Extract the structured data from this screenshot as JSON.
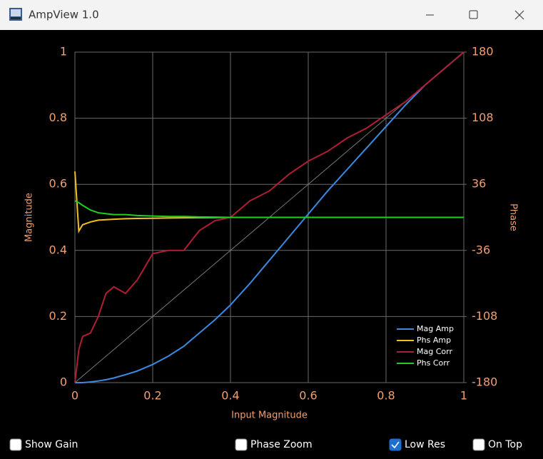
{
  "window": {
    "title": "AmpView 1.0"
  },
  "chart_data": {
    "type": "line",
    "x_label": "Input Magnitude",
    "y_label": "Magnitude",
    "y2_label": "Phase",
    "x": [
      0,
      0.01,
      0.02,
      0.04,
      0.06,
      0.08,
      0.1,
      0.13,
      0.16,
      0.2,
      0.24,
      0.28,
      0.32,
      0.36,
      0.4,
      0.45,
      0.5,
      0.55,
      0.6,
      0.65,
      0.7,
      0.75,
      0.8,
      0.85,
      0.9,
      0.95,
      1
    ],
    "series": [
      {
        "name": "Mag Amp",
        "color": "#3a8ae0",
        "values": [
          0,
          0,
          0,
          0.002,
          0.005,
          0.009,
          0.014,
          0.024,
          0.035,
          0.055,
          0.08,
          0.11,
          0.15,
          0.19,
          0.235,
          0.3,
          0.37,
          0.44,
          0.51,
          0.58,
          0.645,
          0.71,
          0.775,
          0.84,
          0.9,
          0.95,
          1
        ]
      },
      {
        "name": "Phs Amp",
        "color": "#f0c020",
        "axis": "y2",
        "values": [
          50,
          -15,
          -8,
          -5,
          -3,
          -2.5,
          -2,
          -1.5,
          -1.2,
          -1,
          -0.7,
          -0.5,
          -0.3,
          -0.2,
          0,
          0,
          0,
          0,
          0,
          0,
          0,
          0,
          0,
          0,
          0,
          0,
          0
        ]
      },
      {
        "name": "Mag Corr",
        "color": "#b01e34",
        "values": [
          0,
          0.1,
          0.14,
          0.15,
          0.2,
          0.27,
          0.29,
          0.27,
          0.31,
          0.39,
          0.4,
          0.4,
          0.46,
          0.49,
          0.5,
          0.55,
          0.58,
          0.63,
          0.67,
          0.7,
          0.74,
          0.77,
          0.81,
          0.85,
          0.9,
          0.95,
          1
        ]
      },
      {
        "name": "Phs Corr",
        "color": "#20d020",
        "axis": "y2",
        "values": [
          18,
          16,
          13,
          8,
          5,
          4,
          3,
          3,
          2,
          1.5,
          1,
          1,
          0.5,
          0.3,
          0,
          0,
          0,
          0,
          0,
          0,
          0,
          0,
          0,
          0,
          0,
          0,
          0
        ]
      }
    ],
    "xlim": [
      0,
      1
    ],
    "xticks": [
      0,
      0.2,
      0.4,
      0.6,
      0.8,
      1
    ],
    "ylim": [
      0,
      1
    ],
    "yticks": [
      0,
      0.2,
      0.4,
      0.6,
      0.8,
      1
    ],
    "y2lim": [
      -180,
      180
    ],
    "y2ticks": [
      -180,
      -108,
      -36,
      36,
      108,
      180
    ],
    "grid": true,
    "legend": "lower right"
  },
  "controls": [
    {
      "label": "Show Gain",
      "checked": false
    },
    {
      "label": "Phase Zoom",
      "checked": false
    },
    {
      "label": "Low Res",
      "checked": true
    },
    {
      "label": "On Top",
      "checked": false
    }
  ]
}
